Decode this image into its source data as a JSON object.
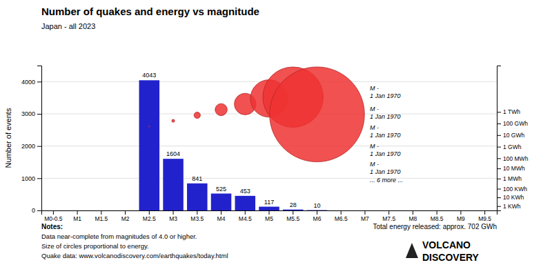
{
  "chart_data": {
    "type": "bar",
    "title": "Number of quakes and energy vs magnitude",
    "subtitle": "Japan - all 2023",
    "categories": [
      "M0-0.5",
      "M1",
      "M1.5",
      "M2",
      "M2.5",
      "M3",
      "M3.5",
      "M4",
      "M4.5",
      "M5",
      "M5.5",
      "M6",
      "M6.5",
      "M7",
      "M7.5",
      "M8",
      "M8.5",
      "M9",
      "M9.5"
    ],
    "series": [
      {
        "type": "bar",
        "color": "#2222cc",
        "values": [
          null,
          null,
          null,
          null,
          4043,
          1604,
          841,
          525,
          453,
          117,
          28,
          10,
          0,
          null,
          null,
          null,
          null,
          null,
          null
        ],
        "value_labels": [
          null,
          null,
          null,
          null,
          "4043",
          "1604",
          "841",
          "525",
          "453",
          "117",
          "28",
          "10",
          null,
          null,
          null,
          null,
          null,
          null,
          null
        ]
      },
      {
        "type": "bubble",
        "color": "#ee3333",
        "sizes": [
          null,
          null,
          null,
          null,
          0.04,
          0.1,
          0.22,
          0.42,
          0.75,
          1.3,
          2.1,
          3.3,
          null,
          null,
          null,
          null,
          null,
          null,
          null
        ]
      }
    ],
    "ylabel": "Number of events",
    "ylim": [
      0,
      4500
    ],
    "yticks": [
      0,
      1000,
      2000,
      3000,
      4000
    ],
    "grid": true,
    "y2lim": [
      0,
      1
    ],
    "y2ticks": [
      {
        "value": 0.03,
        "label": "1 KWh"
      },
      {
        "value": 0.09,
        "label": "10 KWh"
      },
      {
        "value": 0.15,
        "label": "100 KWh"
      },
      {
        "value": 0.22,
        "label": "1 MWh"
      },
      {
        "value": 0.29,
        "label": "10 MWh"
      },
      {
        "value": 0.36,
        "label": "100 MWh"
      },
      {
        "value": 0.44,
        "label": "1 GWh"
      },
      {
        "value": 0.52,
        "label": "10 GWh"
      },
      {
        "value": 0.6,
        "label": "100 GWh"
      },
      {
        "value": 0.68,
        "label": "1 TWh"
      }
    ],
    "annotations": [
      "M -\n1 Jan 1970",
      "M -\n1 Jan 1970",
      "M -\n1 Jan 1970",
      "M -\n1 Jan 1970",
      "M -\n1 Jan 1970",
      "... 6 more ..."
    ],
    "notes": [
      "Notes:",
      "Data near-complete from magnitudes of 4.0 or higher.",
      "Size of circles proportional to energy.",
      "Quake data: www.volcanodiscovery.com/earthquakes/today.html"
    ],
    "energy_text": "Total energy released: approx. 702 GWh",
    "logo": [
      "VOLCANO",
      "DISCOVERY"
    ]
  }
}
